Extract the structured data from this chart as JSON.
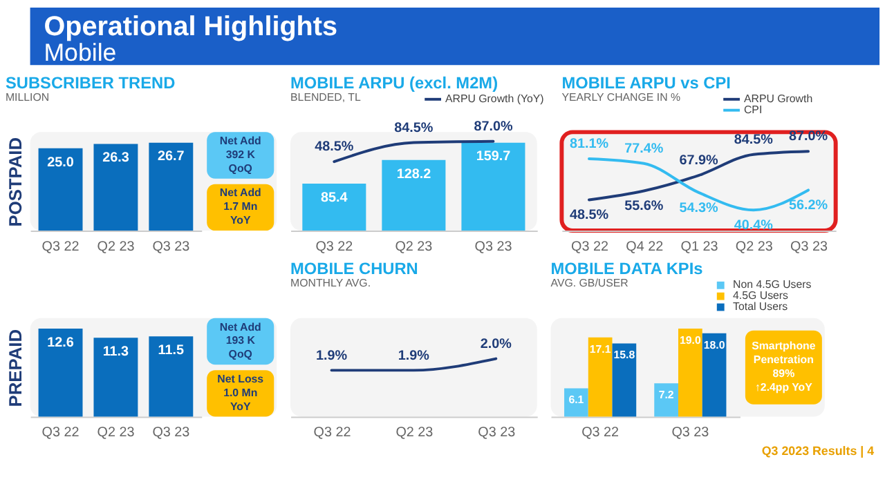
{
  "chart_data": [
    {
      "type": "other",
      "title": "Operational Highlights",
      "subtitle": "Mobile"
    },
    {
      "type": "bar",
      "title": "SUBSCRIBER TREND",
      "subtitle": "MILLION",
      "ylabel": "POSTPAID",
      "categories": [
        "Q3 22",
        "Q2 23",
        "Q3 23"
      ],
      "series": [
        {
          "color": "#0a6ebd",
          "values": [
            25.0,
            26.3,
            26.7
          ],
          "value_labels": [
            "25.0",
            "26.3",
            "26.7"
          ]
        }
      ],
      "annotations": [
        "Net Add\n392 K\nQoQ",
        "Net Add\n1.7 Mn\nYoY"
      ]
    },
    {
      "type": "bar",
      "title": "MOBILE ARPU (excl. M2M)",
      "subtitle": "BLENDED, TL",
      "categories": [
        "Q3 22",
        "Q2 23",
        "Q3 23"
      ],
      "series": [
        {
          "color": "#33bbf0",
          "values": [
            85.4,
            128.2,
            159.7
          ],
          "value_labels": [
            "85.4",
            "128.2",
            "159.7"
          ]
        },
        {
          "name": "ARPU Growth (YoY)",
          "type": "line",
          "axis": "y2",
          "color": "#1f3c78",
          "values": [
            48.5,
            84.5,
            87.0
          ],
          "value_labels": [
            "48.5%",
            "84.5%",
            "87.0%"
          ]
        }
      ],
      "legend": "top right"
    },
    {
      "type": "line",
      "title": "MOBILE ARPU vs CPI",
      "subtitle": "YEARLY CHANGE IN %",
      "categories": [
        "Q3 22",
        "Q4 22",
        "Q1 23",
        "Q2 23",
        "Q3 23"
      ],
      "series": [
        {
          "name": "ARPU Growth",
          "color": "#1f3c78",
          "values": [
            48.5,
            55.6,
            67.9,
            84.5,
            87.0
          ],
          "value_labels": [
            "48.5%",
            "55.6%",
            "67.9%",
            "84.5%",
            "87.0%"
          ]
        },
        {
          "name": "CPI",
          "color": "#33bbf0",
          "values": [
            81.1,
            77.4,
            54.3,
            40.4,
            56.2
          ],
          "value_labels": [
            "81.1%",
            "77.4%",
            "54.3%",
            "40.4%",
            "56.2%"
          ]
        }
      ],
      "legend": "top right"
    },
    {
      "type": "bar",
      "ylabel": "PREPAID",
      "categories": [
        "Q3 22",
        "Q2 23",
        "Q3 23"
      ],
      "series": [
        {
          "color": "#0a6ebd",
          "values": [
            12.6,
            11.3,
            11.5
          ],
          "value_labels": [
            "12.6",
            "11.3",
            "11.5"
          ]
        }
      ],
      "annotations": [
        "Net Add\n193 K\nQoQ",
        "Net Loss\n1.0 Mn\nYoY"
      ]
    },
    {
      "type": "line",
      "title": "MOBILE CHURN",
      "subtitle": "MONTHLY AVG.",
      "categories": [
        "Q3 22",
        "Q2 23",
        "Q3 23"
      ],
      "series": [
        {
          "color": "#1f3c78",
          "values": [
            1.9,
            1.9,
            2.0
          ],
          "value_labels": [
            "1.9%",
            "1.9%",
            "2.0%"
          ]
        }
      ]
    },
    {
      "type": "bar",
      "title": "MOBILE DATA KPIs",
      "subtitle": "AVG. GB/USER",
      "categories": [
        "Q3 22",
        "Q3 23"
      ],
      "series": [
        {
          "name": "Non 4.5G Users",
          "color": "#5bc8f5",
          "values": [
            6.1,
            7.2
          ],
          "value_labels": [
            "6.1",
            "7.2"
          ]
        },
        {
          "name": "4.5G Users",
          "color": "#ffc000",
          "values": [
            17.1,
            19.0
          ],
          "value_labels": [
            "17.1",
            "19.0"
          ]
        },
        {
          "name": "Total Users",
          "color": "#0a6ebd",
          "values": [
            15.8,
            18.0
          ],
          "value_labels": [
            "15.8",
            "18.0"
          ]
        }
      ],
      "legend": "top right",
      "annotations": [
        "Smartphone\nPenetration\n89%\n↑2.4pp YoY"
      ]
    },
    {
      "type": "other",
      "annotations": [
        "Q3 2023 Results | 4"
      ]
    }
  ]
}
